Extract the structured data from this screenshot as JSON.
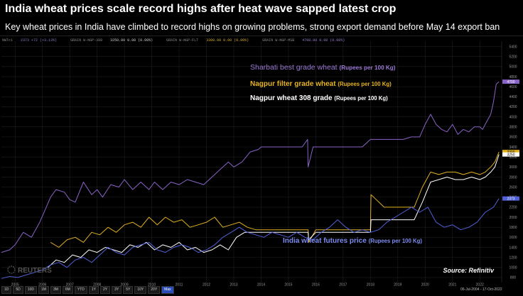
{
  "header": {
    "title": "India wheat prices scale record highs after heat wave sapped latest crop",
    "subtitle": "Key wheat prices in India have climbed to record highs on growing problems, strong export demand before May 14 export ban"
  },
  "legend_strip": [
    {
      "name": "NWTc1",
      "value": "2373 +72 (+3.13%)"
    },
    {
      "name": "GRAIN W-NGP-308",
      "value": "3250.00 0.00 (0.00%)"
    },
    {
      "name": "GRAIN W-NGP-FLT",
      "value": "3300.00 0.00 (0.00%)"
    },
    {
      "name": "GRAIN W-NGP-MSB",
      "value": "4700.00 0.00 (0.00%)"
    }
  ],
  "watermark": "REUTERS",
  "source": "Source: Refinitiv",
  "toolbar": {
    "buttons": [
      "1D",
      "5D",
      "10D",
      "1M",
      "3M",
      "6M",
      "YTD",
      "1Y",
      "2Y",
      "3Y",
      "5Y",
      "10Y",
      "20Y",
      "Max"
    ],
    "active": "Max",
    "date_range": "06-Jul-2004 - 17-Oct-2022"
  },
  "colors": {
    "sharbati": "#8a63c8",
    "filter": "#e0b020",
    "wheat308": "#ffffff",
    "futures": "#5060d8",
    "label_sharbati": "#9b79d4",
    "label_filter": "#e8b420",
    "label_futures": "#7d8cf0"
  },
  "chart_data": {
    "type": "line",
    "title": "India wheat prices scale record highs after heat wave sapped latest crop",
    "subtitle": "Key wheat prices in India have climbed to record highs on growing problems, strong export demand before May 14 export ban",
    "xlabel": "",
    "ylabel": "",
    "x_ticks": [
      "2005",
      "2006",
      "2007",
      "2008",
      "2009",
      "2010",
      "2011",
      "2012",
      "2013",
      "2014",
      "2015",
      "2016",
      "2017",
      "2018",
      "2019",
      "2020",
      "2021",
      "2022"
    ],
    "y_ticks": [
      800,
      1000,
      1200,
      1400,
      1600,
      1800,
      2000,
      2200,
      2400,
      2600,
      2800,
      3000,
      3200,
      3400,
      3600,
      3800,
      4000,
      4200,
      4400,
      4600,
      4800,
      5000,
      5200,
      5400
    ],
    "ylim": [
      700,
      5450
    ],
    "xlim": [
      2004.5,
      2022.8
    ],
    "grid": true,
    "right_axis_markers": [
      {
        "label": "4700",
        "value": 4700,
        "color": "#8a63c8"
      },
      {
        "label": "3300",
        "value": 3300,
        "color": "#e0b020"
      },
      {
        "label": "3250",
        "value": 3250,
        "color": "#ffffff"
      },
      {
        "label": "2373",
        "value": 2373,
        "color": "#5060d8"
      }
    ],
    "series": [
      {
        "name": "Sharbati best grade wheat (Rupees per 100 Kg)",
        "label_main": "Sharbati best grade wheat",
        "label_unit": "(Rupees per 100 Kg)",
        "color_key": "sharbati",
        "label_color_key": "label_sharbati",
        "x": [
          2004.5,
          2004.8,
          2005.0,
          2005.3,
          2005.6,
          2005.9,
          2006.1,
          2006.3,
          2006.5,
          2006.8,
          2007.0,
          2007.2,
          2007.5,
          2007.8,
          2008.0,
          2008.2,
          2008.5,
          2008.8,
          2009.0,
          2009.3,
          2009.6,
          2009.9,
          2010.1,
          2010.4,
          2010.7,
          2011.0,
          2011.3,
          2011.6,
          2011.9,
          2012.2,
          2012.5,
          2012.8,
          2013.0,
          2013.3,
          2013.6,
          2013.9,
          2014.0,
          2014.3,
          2014.6,
          2014.9,
          2015.2,
          2015.5,
          2015.7,
          2015.72,
          2015.9,
          2016.2,
          2016.5,
          2016.8,
          2017.1,
          2017.4,
          2017.7,
          2018.0,
          2018.3,
          2018.6,
          2018.9,
          2019.2,
          2019.5,
          2019.8,
          2020.0,
          2020.2,
          2020.4,
          2020.6,
          2020.8,
          2021.0,
          2021.2,
          2021.4,
          2021.6,
          2021.8,
          2022.0,
          2022.1,
          2022.25,
          2022.4,
          2022.5,
          2022.6,
          2022.7
        ],
        "values": [
          1300,
          1350,
          1450,
          1700,
          1600,
          1900,
          2150,
          2400,
          2550,
          2500,
          2350,
          2300,
          2700,
          2450,
          2550,
          2400,
          2650,
          2600,
          2750,
          2550,
          2700,
          2550,
          2700,
          2550,
          2700,
          2650,
          2750,
          2700,
          2650,
          2800,
          2950,
          3100,
          3000,
          3100,
          3300,
          3350,
          3400,
          3400,
          3400,
          3400,
          3400,
          3400,
          3550,
          3000,
          3400,
          3400,
          3400,
          3400,
          3400,
          3400,
          3400,
          3550,
          3550,
          3550,
          3550,
          3550,
          3600,
          3600,
          3850,
          4050,
          3850,
          3750,
          3700,
          3850,
          3650,
          3750,
          3700,
          3800,
          3800,
          3750,
          3900,
          4050,
          4300,
          4650,
          4700
        ]
      },
      {
        "name": "Nagpur filter grade wheat (Rupees per 100 Kg)",
        "label_main": "Nagpur filter grade wheat",
        "label_unit": "(Rupees per 100 Kg)",
        "color_key": "filter",
        "label_color_key": "label_filter",
        "x": [
          2006.3,
          2006.6,
          2006.9,
          2007.2,
          2007.5,
          2007.8,
          2008.1,
          2008.4,
          2008.7,
          2009.0,
          2009.3,
          2009.6,
          2009.9,
          2010.2,
          2010.5,
          2010.8,
          2011.1,
          2011.4,
          2011.7,
          2012.0,
          2012.3,
          2012.6,
          2012.9,
          2013.2,
          2013.5,
          2013.8,
          2014.0,
          2014.5,
          2015.0,
          2015.5,
          2015.72,
          2015.74,
          2016.0,
          2016.5,
          2017.0,
          2017.5,
          2018.0,
          2018.02,
          2018.5,
          2019.0,
          2019.3,
          2019.6,
          2019.9,
          2020.2,
          2020.5,
          2020.8,
          2021.1,
          2021.4,
          2021.7,
          2022.0,
          2022.2,
          2022.4,
          2022.55,
          2022.7
        ],
        "values": [
          1500,
          1400,
          1550,
          1600,
          1500,
          1700,
          1650,
          1800,
          1700,
          1850,
          1900,
          1800,
          2000,
          1850,
          2000,
          1900,
          1950,
          1800,
          1850,
          1900,
          2000,
          1800,
          1850,
          1900,
          1800,
          1750,
          1750,
          1750,
          1750,
          1750,
          1750,
          1500,
          1750,
          1750,
          1750,
          1750,
          1750,
          2450,
          2200,
          2200,
          2200,
          2200,
          2600,
          2900,
          2850,
          2900,
          2900,
          2850,
          2900,
          2850,
          2900,
          3000,
          3100,
          3300
        ]
      },
      {
        "name": "Nagpur wheat 308 grade (Rupees per 100 Kg)",
        "label_main": "Nagpur wheat 308 grade",
        "label_unit": "(Rupees per 100 Kg)",
        "color_key": "wheat308",
        "label_color_key": "wheat308",
        "x": [
          2006.2,
          2006.5,
          2006.8,
          2007.1,
          2007.4,
          2007.7,
          2008.0,
          2008.3,
          2008.6,
          2008.9,
          2009.2,
          2009.5,
          2009.8,
          2010.1,
          2010.4,
          2010.7,
          2011.0,
          2011.3,
          2011.6,
          2011.9,
          2012.2,
          2012.5,
          2012.8,
          2013.1,
          2013.4,
          2013.7,
          2014.0,
          2014.5,
          2015.0,
          2015.5,
          2015.72,
          2015.74,
          2016.0,
          2016.5,
          2017.0,
          2017.5,
          2018.0,
          2018.02,
          2018.5,
          2019.0,
          2019.3,
          2019.6,
          2019.9,
          2020.2,
          2020.5,
          2020.8,
          2021.1,
          2021.4,
          2021.7,
          2022.0,
          2022.2,
          2022.4,
          2022.55,
          2022.7
        ],
        "values": [
          1000,
          1150,
          1100,
          1250,
          1200,
          1350,
          1300,
          1400,
          1350,
          1300,
          1450,
          1400,
          1500,
          1350,
          1450,
          1400,
          1500,
          1350,
          1400,
          1300,
          1350,
          1450,
          1350,
          1600,
          1700,
          1700,
          1700,
          1700,
          1700,
          1700,
          1700,
          1550,
          1700,
          1700,
          1700,
          1700,
          1700,
          1950,
          1950,
          1950,
          1950,
          1950,
          2300,
          2700,
          2750,
          2800,
          2750,
          2750,
          2800,
          2750,
          2800,
          2900,
          3000,
          3250
        ]
      },
      {
        "name": "India wheat futures price (Rupees per 100 Kg)",
        "label_main": "India wheat futures price",
        "label_unit": "(Rupees per 100 Kg)",
        "color_key": "futures",
        "label_color_key": "label_futures",
        "x": [
          2004.5,
          2004.8,
          2005.1,
          2005.4,
          2005.7,
          2006.0,
          2006.3,
          2006.6,
          2006.9,
          2007.2,
          2007.5,
          2007.8,
          2008.1,
          2008.4,
          2008.7,
          2009.0,
          2009.3,
          2009.6,
          2009.9,
          2010.2,
          2010.5,
          2010.8,
          2011.1,
          2011.4,
          2011.7,
          2012.0,
          2012.3,
          2012.6,
          2012.9,
          2013.2,
          2013.5,
          2013.8,
          2014.1,
          2014.4,
          2014.7,
          2015.0,
          2015.3,
          2015.6,
          2015.9,
          2016.2,
          2016.5,
          2016.8,
          2017.1,
          2017.4,
          2017.7,
          2018.0,
          2018.3,
          2018.6,
          2018.9,
          2019.2,
          2019.5,
          2019.8,
          2020.1,
          2020.4,
          2020.7,
          2021.0,
          2021.3,
          2021.6,
          2021.9,
          2022.2,
          2022.5,
          2022.7
        ],
        "values": [
          780,
          820,
          800,
          850,
          900,
          950,
          1050,
          1100,
          1000,
          1150,
          1200,
          1100,
          1250,
          1400,
          1300,
          1250,
          1400,
          1450,
          1500,
          1350,
          1300,
          1400,
          1450,
          1400,
          1300,
          1350,
          1450,
          1600,
          1700,
          1800,
          1700,
          1650,
          1600,
          1700,
          1650,
          1600,
          1700,
          1600,
          1550,
          1700,
          1800,
          1950,
          1800,
          1700,
          1750,
          1700,
          1750,
          1900,
          2000,
          2100,
          2200,
          2100,
          2200,
          1900,
          1800,
          1850,
          1750,
          1800,
          1900,
          2100,
          2200,
          2373
        ]
      }
    ]
  }
}
